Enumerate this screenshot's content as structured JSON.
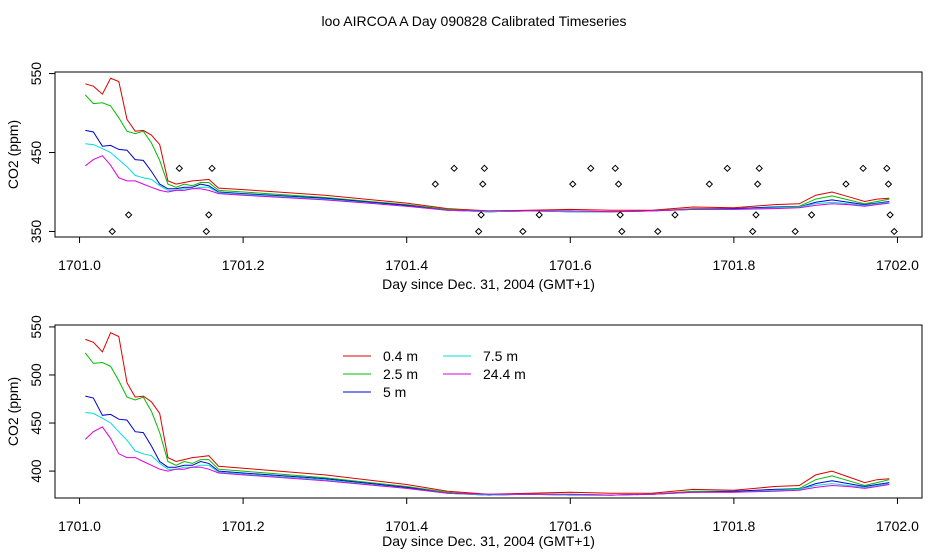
{
  "page_title": "loo AIRCOA A  Day 090828  Calibrated Timeseries",
  "series_colors": {
    "0.4 m": "#dd0000",
    "2.5 m": "#00bb00",
    "5 m": "#0000cc",
    "7.5 m": "#00dddd",
    "24.4 m": "#dd00dd"
  },
  "legend_items": [
    "0.4 m",
    "2.5 m",
    "5 m",
    "7.5 m",
    "24.4 m"
  ],
  "chart_data": [
    {
      "type": "line",
      "xlabel": "Day since Dec. 31, 2004 (GMT+1)",
      "ylabel": "CO2 (ppm)",
      "xlim": [
        1700.97,
        1702.03
      ],
      "ylim": [
        343,
        552
      ],
      "xticks": [
        1701.0,
        1701.2,
        1701.4,
        1701.6,
        1701.8,
        1702.0
      ],
      "xtick_labels": [
        "1701.0",
        "1701.2",
        "1701.4",
        "1701.6",
        "1701.8",
        "1702.0"
      ],
      "yticks": [
        350,
        450,
        550
      ],
      "ytick_labels": [
        "350",
        "450",
        "550"
      ],
      "grid": false,
      "legend": "none",
      "series": [
        {
          "name": "0.4 m",
          "color": "#dd0000",
          "x": [
            1701.007,
            1701.017,
            1701.028,
            1701.038,
            1701.048,
            1701.058,
            1701.068,
            1701.078,
            1701.088,
            1701.098,
            1701.108,
            1701.118,
            1701.128,
            1701.138,
            1701.148,
            1701.158,
            1701.17,
            1701.2,
            1701.3,
            1701.4,
            1701.45,
            1701.5,
            1701.55,
            1701.6,
            1701.65,
            1701.7,
            1701.75,
            1701.8,
            1701.85,
            1701.88,
            1701.9,
            1701.92,
            1701.94,
            1701.96,
            1701.975,
            1701.99
          ],
          "y": [
            537,
            534,
            524,
            544,
            540,
            492,
            477,
            478,
            472,
            460,
            414,
            410,
            412,
            414,
            415,
            416,
            405,
            403,
            396,
            386,
            379,
            376,
            377,
            378,
            377,
            377,
            381,
            380,
            384,
            385,
            396,
            400,
            394,
            388,
            391,
            392
          ]
        },
        {
          "name": "2.5 m",
          "color": "#00bb00",
          "x": [
            1701.007,
            1701.017,
            1701.028,
            1701.038,
            1701.048,
            1701.058,
            1701.068,
            1701.078,
            1701.088,
            1701.098,
            1701.108,
            1701.118,
            1701.128,
            1701.138,
            1701.148,
            1701.158,
            1701.17,
            1701.2,
            1701.3,
            1701.4,
            1701.45,
            1701.5,
            1701.55,
            1701.6,
            1701.65,
            1701.7,
            1701.75,
            1701.8,
            1701.85,
            1701.88,
            1701.9,
            1701.92,
            1701.94,
            1701.96,
            1701.975,
            1701.99
          ],
          "y": [
            523,
            512,
            513,
            509,
            494,
            477,
            474,
            477,
            462,
            440,
            410,
            406,
            410,
            408,
            412,
            412,
            402,
            400,
            393,
            384,
            378,
            375,
            376,
            376,
            375,
            376,
            379,
            379,
            381,
            382,
            391,
            395,
            390,
            385,
            388,
            391
          ]
        },
        {
          "name": "5 m",
          "color": "#0000cc",
          "x": [
            1701.007,
            1701.017,
            1701.028,
            1701.038,
            1701.048,
            1701.058,
            1701.068,
            1701.078,
            1701.088,
            1701.098,
            1701.108,
            1701.118,
            1701.128,
            1701.138,
            1701.148,
            1701.158,
            1701.17,
            1701.2,
            1701.3,
            1701.4,
            1701.45,
            1701.5,
            1701.55,
            1701.6,
            1701.65,
            1701.7,
            1701.75,
            1701.8,
            1701.85,
            1701.88,
            1701.9,
            1701.92,
            1701.94,
            1701.96,
            1701.975,
            1701.99
          ],
          "y": [
            478,
            476,
            458,
            459,
            454,
            453,
            441,
            440,
            426,
            410,
            404,
            404,
            406,
            406,
            410,
            408,
            400,
            398,
            392,
            383,
            377,
            375,
            376,
            375,
            375,
            376,
            378,
            379,
            381,
            381,
            387,
            390,
            387,
            384,
            386,
            388
          ]
        },
        {
          "name": "7.5 m",
          "color": "#00dddd",
          "x": [
            1701.007,
            1701.017,
            1701.028,
            1701.038,
            1701.048,
            1701.058,
            1701.068,
            1701.078,
            1701.088,
            1701.098,
            1701.108,
            1701.118,
            1701.128,
            1701.138,
            1701.148,
            1701.158,
            1701.17,
            1701.2,
            1701.3,
            1701.4,
            1701.45,
            1701.5,
            1701.55,
            1701.6,
            1701.65,
            1701.7,
            1701.75,
            1701.8,
            1701.85,
            1701.88,
            1701.9,
            1701.92,
            1701.94,
            1701.96,
            1701.975,
            1701.99
          ],
          "y": [
            461,
            460,
            455,
            450,
            441,
            432,
            421,
            418,
            416,
            408,
            402,
            402,
            404,
            404,
            406,
            406,
            399,
            397,
            391,
            382,
            377,
            375,
            376,
            375,
            375,
            376,
            378,
            378,
            380,
            381,
            385,
            387,
            385,
            383,
            385,
            387
          ]
        },
        {
          "name": "24.4 m",
          "color": "#dd00dd",
          "x": [
            1701.007,
            1701.017,
            1701.028,
            1701.038,
            1701.048,
            1701.058,
            1701.068,
            1701.078,
            1701.088,
            1701.098,
            1701.108,
            1701.118,
            1701.128,
            1701.138,
            1701.148,
            1701.158,
            1701.17,
            1701.2,
            1701.3,
            1701.4,
            1701.45,
            1701.5,
            1701.55,
            1701.6,
            1701.65,
            1701.7,
            1701.75,
            1701.8,
            1701.85,
            1701.88,
            1701.9,
            1701.92,
            1701.94,
            1701.96,
            1701.975,
            1701.99
          ],
          "y": [
            433,
            441,
            446,
            434,
            418,
            414,
            414,
            410,
            406,
            402,
            400,
            402,
            402,
            404,
            404,
            402,
            398,
            396,
            390,
            382,
            377,
            376,
            376,
            376,
            375,
            376,
            378,
            378,
            379,
            380,
            383,
            385,
            384,
            382,
            384,
            386
          ]
        },
        {
          "name": "markers",
          "type": "scatter",
          "marker": "diamond",
          "x": [
            1701.04,
            1701.06,
            1701.122,
            1701.155,
            1701.158,
            1701.162,
            1701.435,
            1701.458,
            1701.488,
            1701.491,
            1701.493,
            1701.495,
            1701.542,
            1701.562,
            1701.603,
            1701.625,
            1701.655,
            1701.659,
            1701.661,
            1701.663,
            1701.707,
            1701.728,
            1701.77,
            1701.792,
            1701.823,
            1701.827,
            1701.829,
            1701.831,
            1701.875,
            1701.895,
            1701.937,
            1701.958,
            1701.987,
            1701.989,
            1701.991,
            1701.996
          ],
          "y": [
            350,
            371,
            430,
            350,
            371,
            430,
            410,
            430,
            350,
            371,
            410,
            430,
            350,
            371,
            410,
            430,
            430,
            410,
            371,
            350,
            350,
            371,
            410,
            430,
            350,
            371,
            410,
            430,
            350,
            371,
            410,
            430,
            430,
            410,
            371,
            350
          ]
        }
      ]
    },
    {
      "type": "line",
      "xlabel": "Day since Dec. 31, 2004 (GMT+1)",
      "ylabel": "CO2 (ppm)",
      "xlim": [
        1700.97,
        1702.03
      ],
      "ylim": [
        372,
        552
      ],
      "xticks": [
        1701.0,
        1701.2,
        1701.4,
        1701.6,
        1701.8,
        1702.0
      ],
      "xtick_labels": [
        "1701.0",
        "1701.2",
        "1701.4",
        "1701.6",
        "1701.8",
        "1702.0"
      ],
      "yticks": [
        400,
        450,
        500,
        550
      ],
      "ytick_labels": [
        "400",
        "450",
        "500",
        "550"
      ],
      "grid": false,
      "legend": "top-left",
      "series": [
        {
          "name": "0.4 m",
          "color": "#dd0000",
          "x": [
            1701.007,
            1701.017,
            1701.028,
            1701.038,
            1701.048,
            1701.058,
            1701.068,
            1701.078,
            1701.088,
            1701.098,
            1701.108,
            1701.118,
            1701.128,
            1701.138,
            1701.148,
            1701.158,
            1701.17,
            1701.2,
            1701.3,
            1701.4,
            1701.45,
            1701.5,
            1701.55,
            1701.6,
            1701.65,
            1701.7,
            1701.75,
            1701.8,
            1701.85,
            1701.88,
            1701.9,
            1701.92,
            1701.94,
            1701.96,
            1701.975,
            1701.99
          ],
          "y": [
            537,
            534,
            524,
            544,
            540,
            492,
            477,
            478,
            472,
            460,
            414,
            410,
            412,
            414,
            415,
            416,
            405,
            403,
            396,
            386,
            379,
            376,
            377,
            378,
            377,
            377,
            381,
            380,
            384,
            385,
            396,
            400,
            394,
            388,
            391,
            392
          ]
        },
        {
          "name": "2.5 m",
          "color": "#00bb00",
          "x": [
            1701.007,
            1701.017,
            1701.028,
            1701.038,
            1701.048,
            1701.058,
            1701.068,
            1701.078,
            1701.088,
            1701.098,
            1701.108,
            1701.118,
            1701.128,
            1701.138,
            1701.148,
            1701.158,
            1701.17,
            1701.2,
            1701.3,
            1701.4,
            1701.45,
            1701.5,
            1701.55,
            1701.6,
            1701.65,
            1701.7,
            1701.75,
            1701.8,
            1701.85,
            1701.88,
            1701.9,
            1701.92,
            1701.94,
            1701.96,
            1701.975,
            1701.99
          ],
          "y": [
            523,
            512,
            513,
            509,
            494,
            477,
            474,
            477,
            462,
            440,
            410,
            406,
            410,
            408,
            412,
            412,
            402,
            400,
            393,
            384,
            378,
            375,
            376,
            376,
            375,
            376,
            379,
            379,
            381,
            382,
            391,
            395,
            390,
            385,
            388,
            391
          ]
        },
        {
          "name": "5 m",
          "color": "#0000cc",
          "x": [
            1701.007,
            1701.017,
            1701.028,
            1701.038,
            1701.048,
            1701.058,
            1701.068,
            1701.078,
            1701.088,
            1701.098,
            1701.108,
            1701.118,
            1701.128,
            1701.138,
            1701.148,
            1701.158,
            1701.17,
            1701.2,
            1701.3,
            1701.4,
            1701.45,
            1701.5,
            1701.55,
            1701.6,
            1701.65,
            1701.7,
            1701.75,
            1701.8,
            1701.85,
            1701.88,
            1701.9,
            1701.92,
            1701.94,
            1701.96,
            1701.975,
            1701.99
          ],
          "y": [
            478,
            476,
            458,
            459,
            454,
            453,
            441,
            440,
            426,
            410,
            404,
            404,
            406,
            406,
            410,
            408,
            400,
            398,
            392,
            383,
            377,
            375,
            376,
            375,
            375,
            376,
            378,
            379,
            381,
            381,
            387,
            390,
            387,
            384,
            386,
            388
          ]
        },
        {
          "name": "7.5 m",
          "color": "#00dddd",
          "x": [
            1701.007,
            1701.017,
            1701.028,
            1701.038,
            1701.048,
            1701.058,
            1701.068,
            1701.078,
            1701.088,
            1701.098,
            1701.108,
            1701.118,
            1701.128,
            1701.138,
            1701.148,
            1701.158,
            1701.17,
            1701.2,
            1701.3,
            1701.4,
            1701.45,
            1701.5,
            1701.55,
            1701.6,
            1701.65,
            1701.7,
            1701.75,
            1701.8,
            1701.85,
            1701.88,
            1701.9,
            1701.92,
            1701.94,
            1701.96,
            1701.975,
            1701.99
          ],
          "y": [
            461,
            460,
            455,
            450,
            441,
            432,
            421,
            418,
            416,
            408,
            402,
            402,
            404,
            404,
            406,
            406,
            399,
            397,
            391,
            382,
            377,
            375,
            376,
            375,
            375,
            376,
            378,
            378,
            380,
            381,
            385,
            387,
            385,
            383,
            385,
            387
          ]
        },
        {
          "name": "24.4 m",
          "color": "#dd00dd",
          "x": [
            1701.007,
            1701.017,
            1701.028,
            1701.038,
            1701.048,
            1701.058,
            1701.068,
            1701.078,
            1701.088,
            1701.098,
            1701.108,
            1701.118,
            1701.128,
            1701.138,
            1701.148,
            1701.158,
            1701.17,
            1701.2,
            1701.3,
            1701.4,
            1701.45,
            1701.5,
            1701.55,
            1701.6,
            1701.65,
            1701.7,
            1701.75,
            1701.8,
            1701.85,
            1701.88,
            1701.9,
            1701.92,
            1701.94,
            1701.96,
            1701.975,
            1701.99
          ],
          "y": [
            433,
            441,
            446,
            434,
            418,
            414,
            414,
            410,
            406,
            402,
            400,
            402,
            402,
            404,
            404,
            402,
            398,
            396,
            390,
            382,
            377,
            376,
            376,
            376,
            375,
            376,
            378,
            378,
            379,
            380,
            383,
            385,
            384,
            382,
            384,
            386
          ]
        }
      ]
    }
  ]
}
